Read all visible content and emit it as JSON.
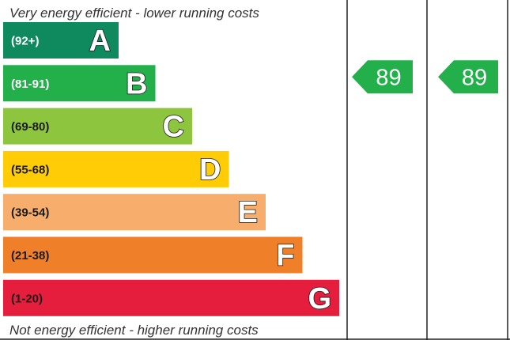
{
  "chart_data": {
    "type": "bar",
    "top_caption": "Very energy efficient - lower running costs",
    "bottom_caption": "Not energy efficient - higher running costs",
    "bands": [
      {
        "letter": "A",
        "range": "(92+)",
        "color": "#0f8a5f",
        "text_color": "#ffffff"
      },
      {
        "letter": "B",
        "range": "(81-91)",
        "color": "#23b04b",
        "text_color": "#ffffff"
      },
      {
        "letter": "C",
        "range": "(69-80)",
        "color": "#8dc53f",
        "text_color": "#1a1a1a"
      },
      {
        "letter": "D",
        "range": "(55-68)",
        "color": "#ffcc05",
        "text_color": "#1a1a1a"
      },
      {
        "letter": "E",
        "range": "(39-54)",
        "color": "#f7ad6b",
        "text_color": "#1a1a1a"
      },
      {
        "letter": "F",
        "range": "(21-38)",
        "color": "#ef7f28",
        "text_color": "#1a1a1a"
      },
      {
        "letter": "G",
        "range": "(1-20)",
        "color": "#e41e3c",
        "text_color": "#1a1a1a"
      }
    ],
    "ratings": [
      {
        "value": "89",
        "band": "B",
        "color": "#23b04b"
      },
      {
        "value": "89",
        "band": "B",
        "color": "#23b04b"
      }
    ]
  }
}
